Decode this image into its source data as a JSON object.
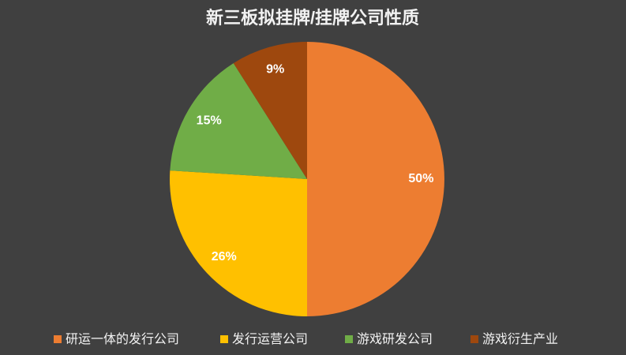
{
  "chart_data": {
    "type": "pie",
    "title": "新三板拟挂牌/挂牌公司性质",
    "categories": [
      "研运一体的发行公司",
      "发行运营公司",
      "游戏研发公司",
      "游戏衍生产业"
    ],
    "values": [
      50,
      26,
      15,
      9
    ],
    "value_labels": [
      "50%",
      "26%",
      "15%",
      "9%"
    ],
    "colors": [
      "#ed7d31",
      "#ffc000",
      "#70ad47",
      "#9e480e"
    ],
    "legend": "bottom"
  }
}
